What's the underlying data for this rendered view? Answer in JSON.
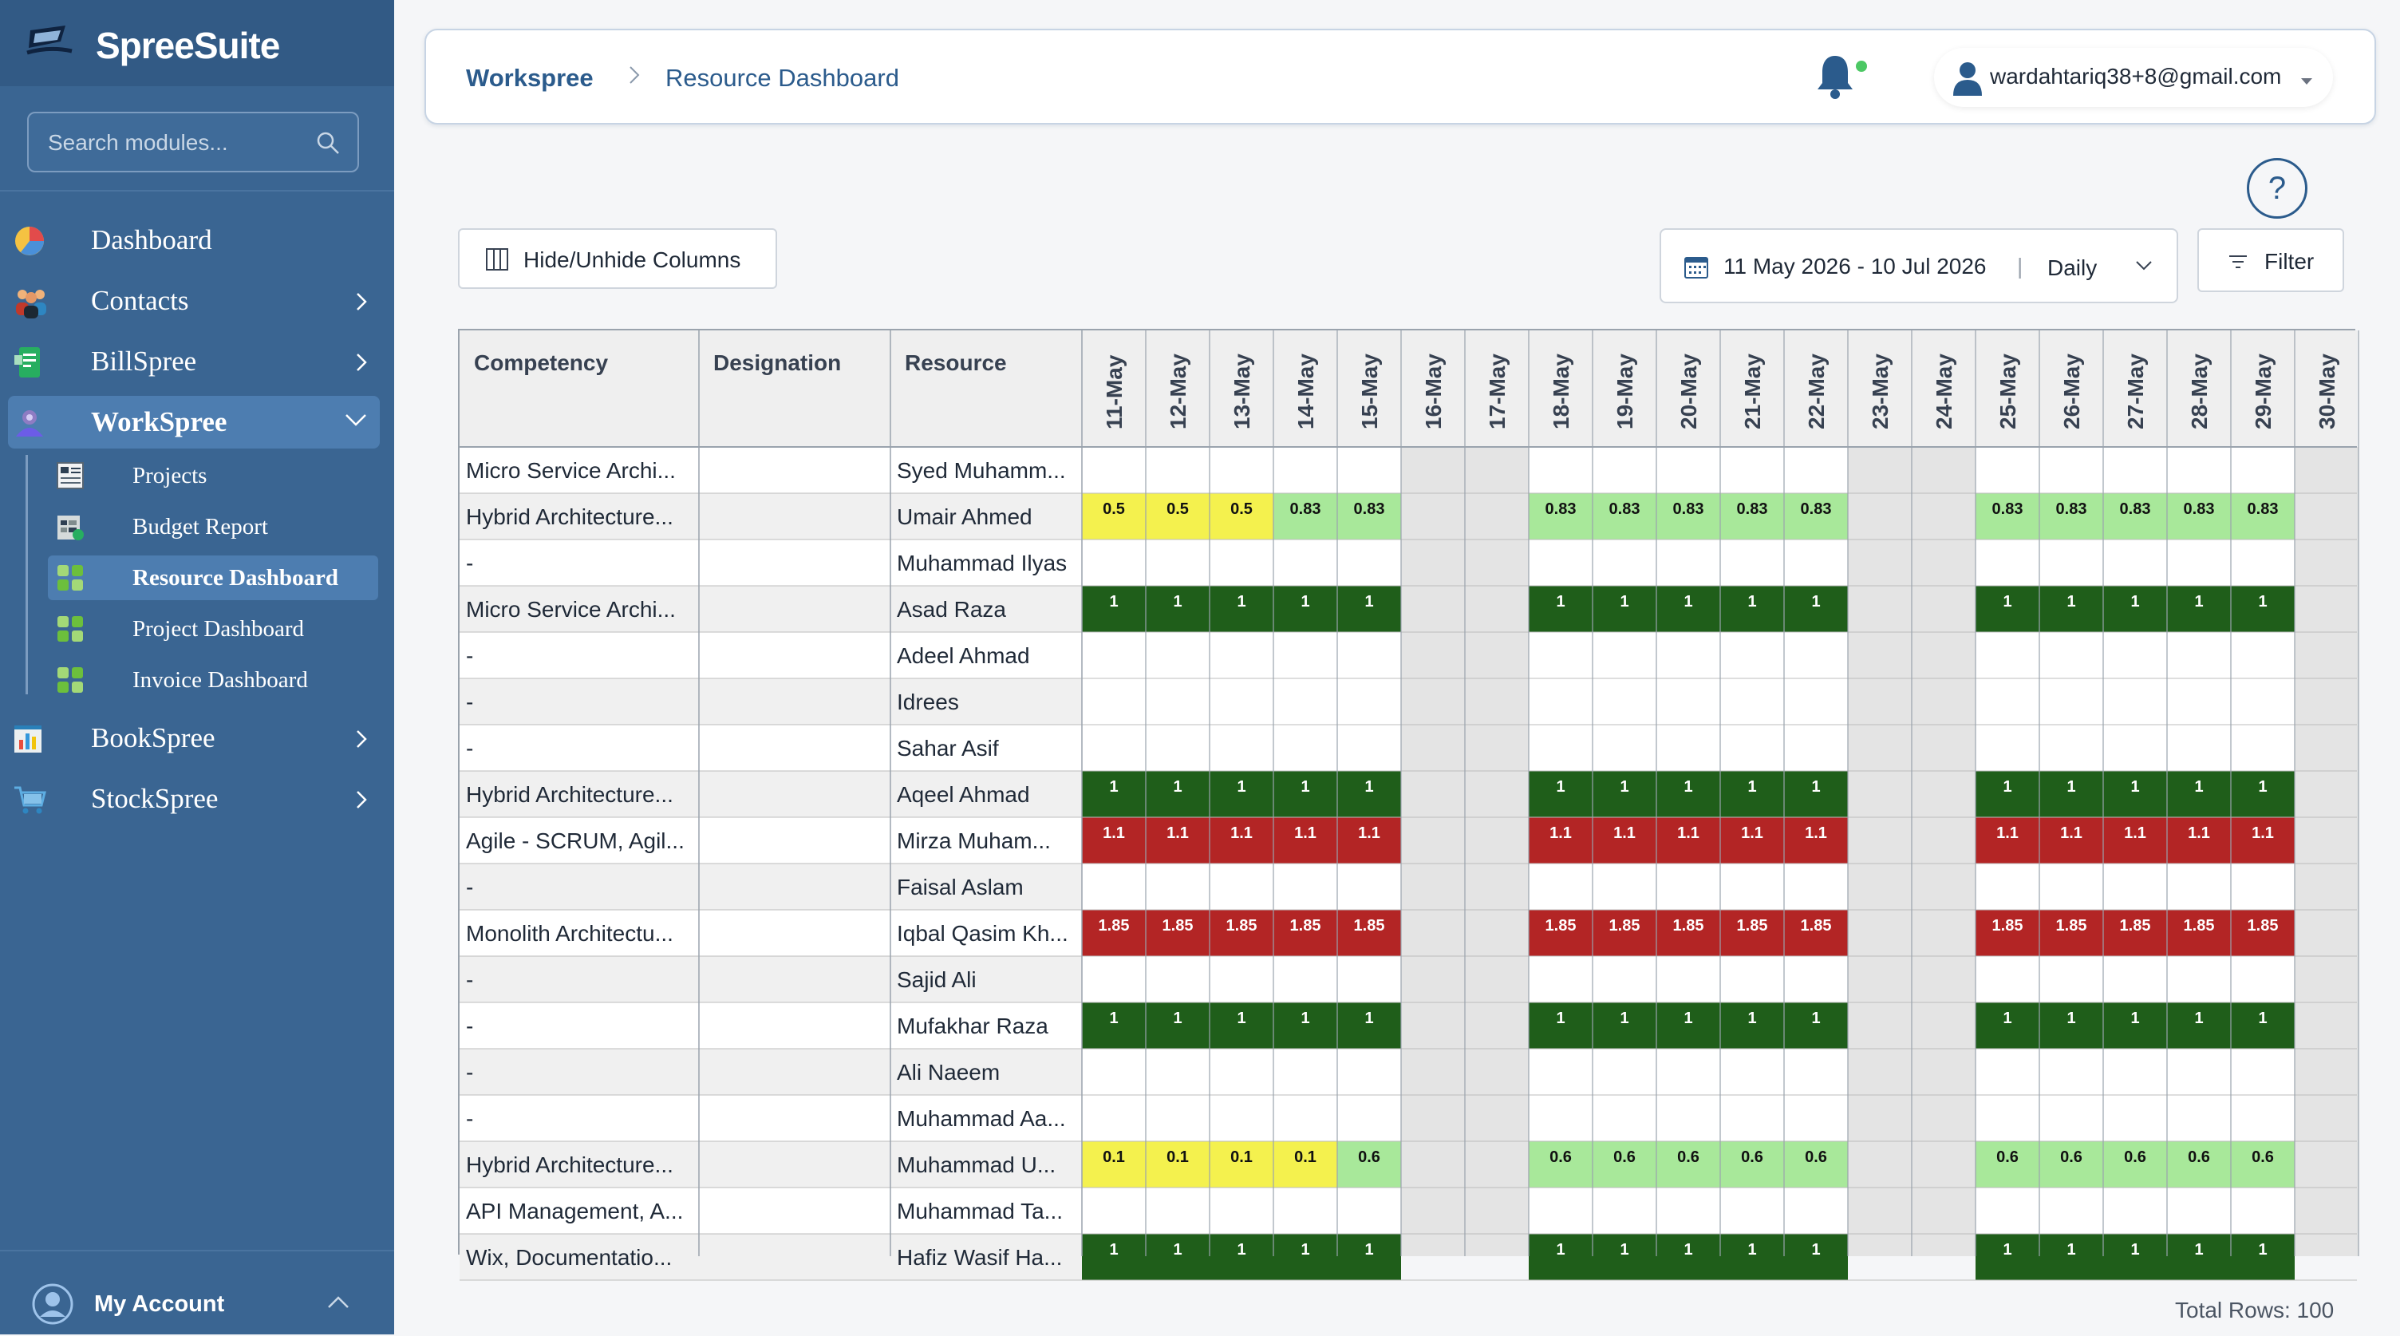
{
  "app": {
    "name": "SpreeSuite"
  },
  "sidebar": {
    "search_placeholder": "Search modules...",
    "items": [
      {
        "label": "Dashboard",
        "icon": "pie-chart-icon",
        "has_children": false
      },
      {
        "label": "Contacts",
        "icon": "people-icon",
        "has_children": true
      },
      {
        "label": "BillSpree",
        "icon": "bill-icon",
        "has_children": true
      },
      {
        "label": "WorkSpree",
        "icon": "workspree-icon",
        "has_children": true,
        "expanded": true
      },
      {
        "label": "BookSpree",
        "icon": "book-chart-icon",
        "has_children": true
      },
      {
        "label": "StockSpree",
        "icon": "cart-icon",
        "has_children": true
      }
    ],
    "workspree_children": [
      {
        "label": "Projects",
        "icon": "projects-icon"
      },
      {
        "label": "Budget Report",
        "icon": "budget-icon"
      },
      {
        "label": "Resource Dashboard",
        "icon": "grid-dashboard-icon",
        "active": true
      },
      {
        "label": "Project Dashboard",
        "icon": "grid-dashboard-icon"
      },
      {
        "label": "Invoice Dashboard",
        "icon": "grid-dashboard-icon"
      }
    ],
    "account_label": "My Account"
  },
  "header": {
    "breadcrumb_root": "Workspree",
    "breadcrumb_page": "Resource Dashboard",
    "user_email": "wardahtariq38+8@gmail.com"
  },
  "toolbar": {
    "hide_columns_label": "Hide/Unhide Columns",
    "date_range": "11 May 2026 - 10 Jul 2026",
    "view_mode": "Daily",
    "filter_label": "Filter"
  },
  "colors": {
    "sidebar_bg": "#3a6592",
    "accent": "#2b5b8c",
    "weekend_bg": "#e4e4e4",
    "yellow": "#f4f14e",
    "light_green": "#a8e89a",
    "dark_green": "#1f5e1a",
    "red": "#b32525"
  },
  "table": {
    "headers": {
      "competency": "Competency",
      "designation": "Designation",
      "resource": "Resource"
    },
    "dates": [
      "11-May",
      "12-May",
      "13-May",
      "14-May",
      "15-May",
      "16-May",
      "17-May",
      "18-May",
      "19-May",
      "20-May",
      "21-May",
      "22-May",
      "23-May",
      "24-May",
      "25-May",
      "26-May",
      "27-May",
      "28-May",
      "29-May",
      "30-May"
    ],
    "weekend_indices": [
      5,
      6,
      12,
      13,
      19
    ],
    "rows": [
      {
        "competency": "Micro Service Archi...",
        "designation": "",
        "resource": "Syed Muhamm...",
        "values": [
          "",
          "",
          "",
          "",
          "",
          "",
          "",
          "",
          "",
          "",
          "",
          "",
          "",
          "",
          "",
          "",
          "",
          "",
          "",
          ""
        ]
      },
      {
        "competency": "Hybrid Architecture...",
        "designation": "",
        "resource": "Umair Ahmed",
        "values": [
          "0.5",
          "0.5",
          "0.5",
          "0.83",
          "0.83",
          "",
          "",
          "0.83",
          "0.83",
          "0.83",
          "0.83",
          "0.83",
          "",
          "",
          "0.83",
          "0.83",
          "0.83",
          "0.83",
          "0.83",
          ""
        ]
      },
      {
        "competency": "-",
        "designation": "",
        "resource": "Muhammad Ilyas",
        "values": [
          "",
          "",
          "",
          "",
          "",
          "",
          "",
          "",
          "",
          "",
          "",
          "",
          "",
          "",
          "",
          "",
          "",
          "",
          "",
          ""
        ]
      },
      {
        "competency": "Micro Service Archi...",
        "designation": "",
        "resource": "Asad Raza",
        "values": [
          "1",
          "1",
          "1",
          "1",
          "1",
          "",
          "",
          "1",
          "1",
          "1",
          "1",
          "1",
          "",
          "",
          "1",
          "1",
          "1",
          "1",
          "1",
          ""
        ]
      },
      {
        "competency": "-",
        "designation": "",
        "resource": "Adeel Ahmad",
        "values": [
          "",
          "",
          "",
          "",
          "",
          "",
          "",
          "",
          "",
          "",
          "",
          "",
          "",
          "",
          "",
          "",
          "",
          "",
          "",
          ""
        ]
      },
      {
        "competency": "-",
        "designation": "",
        "resource": "Idrees",
        "values": [
          "",
          "",
          "",
          "",
          "",
          "",
          "",
          "",
          "",
          "",
          "",
          "",
          "",
          "",
          "",
          "",
          "",
          "",
          "",
          ""
        ]
      },
      {
        "competency": "-",
        "designation": "",
        "resource": "Sahar Asif",
        "values": [
          "",
          "",
          "",
          "",
          "",
          "",
          "",
          "",
          "",
          "",
          "",
          "",
          "",
          "",
          "",
          "",
          "",
          "",
          "",
          ""
        ]
      },
      {
        "competency": "Hybrid Architecture...",
        "designation": "",
        "resource": "Aqeel Ahmad",
        "values": [
          "1",
          "1",
          "1",
          "1",
          "1",
          "",
          "",
          "1",
          "1",
          "1",
          "1",
          "1",
          "",
          "",
          "1",
          "1",
          "1",
          "1",
          "1",
          ""
        ]
      },
      {
        "competency": "Agile - SCRUM, Agil...",
        "designation": "",
        "resource": "Mirza Muham...",
        "values": [
          "1.1",
          "1.1",
          "1.1",
          "1.1",
          "1.1",
          "",
          "",
          "1.1",
          "1.1",
          "1.1",
          "1.1",
          "1.1",
          "",
          "",
          "1.1",
          "1.1",
          "1.1",
          "1.1",
          "1.1",
          ""
        ]
      },
      {
        "competency": "-",
        "designation": "",
        "resource": "Faisal Aslam",
        "values": [
          "",
          "",
          "",
          "",
          "",
          "",
          "",
          "",
          "",
          "",
          "",
          "",
          "",
          "",
          "",
          "",
          "",
          "",
          "",
          ""
        ]
      },
      {
        "competency": "Monolith Architectu...",
        "designation": "",
        "resource": "Iqbal Qasim Kh...",
        "values": [
          "1.85",
          "1.85",
          "1.85",
          "1.85",
          "1.85",
          "",
          "",
          "1.85",
          "1.85",
          "1.85",
          "1.85",
          "1.85",
          "",
          "",
          "1.85",
          "1.85",
          "1.85",
          "1.85",
          "1.85",
          ""
        ]
      },
      {
        "competency": "-",
        "designation": "",
        "resource": "Sajid Ali",
        "values": [
          "",
          "",
          "",
          "",
          "",
          "",
          "",
          "",
          "",
          "",
          "",
          "",
          "",
          "",
          "",
          "",
          "",
          "",
          "",
          ""
        ]
      },
      {
        "competency": "-",
        "designation": "",
        "resource": "Mufakhar Raza",
        "values": [
          "1",
          "1",
          "1",
          "1",
          "1",
          "",
          "",
          "1",
          "1",
          "1",
          "1",
          "1",
          "",
          "",
          "1",
          "1",
          "1",
          "1",
          "1",
          ""
        ]
      },
      {
        "competency": "-",
        "designation": "",
        "resource": "Ali Naeem",
        "values": [
          "",
          "",
          "",
          "",
          "",
          "",
          "",
          "",
          "",
          "",
          "",
          "",
          "",
          "",
          "",
          "",
          "",
          "",
          "",
          ""
        ]
      },
      {
        "competency": "-",
        "designation": "",
        "resource": "Muhammad Aa...",
        "values": [
          "",
          "",
          "",
          "",
          "",
          "",
          "",
          "",
          "",
          "",
          "",
          "",
          "",
          "",
          "",
          "",
          "",
          "",
          "",
          ""
        ]
      },
      {
        "competency": "Hybrid Architecture...",
        "designation": "",
        "resource": "Muhammad U...",
        "values": [
          "0.1",
          "0.1",
          "0.1",
          "0.1",
          "0.6",
          "",
          "",
          "0.6",
          "0.6",
          "0.6",
          "0.6",
          "0.6",
          "",
          "",
          "0.6",
          "0.6",
          "0.6",
          "0.6",
          "0.6",
          ""
        ]
      },
      {
        "competency": "API Management, A...",
        "designation": "",
        "resource": "Muhammad Ta...",
        "values": [
          "",
          "",
          "",
          "",
          "",
          "",
          "",
          "",
          "",
          "",
          "",
          "",
          "",
          "",
          "",
          "",
          "",
          "",
          "",
          ""
        ]
      },
      {
        "competency": "Wix, Documentatio...",
        "designation": "",
        "resource": "Hafiz Wasif Ha...",
        "values": [
          "1",
          "1",
          "1",
          "1",
          "1",
          "",
          "",
          "1",
          "1",
          "1",
          "1",
          "1",
          "",
          "",
          "1",
          "1",
          "1",
          "1",
          "1",
          ""
        ]
      }
    ],
    "total_rows_label": "Total Rows: 100"
  }
}
